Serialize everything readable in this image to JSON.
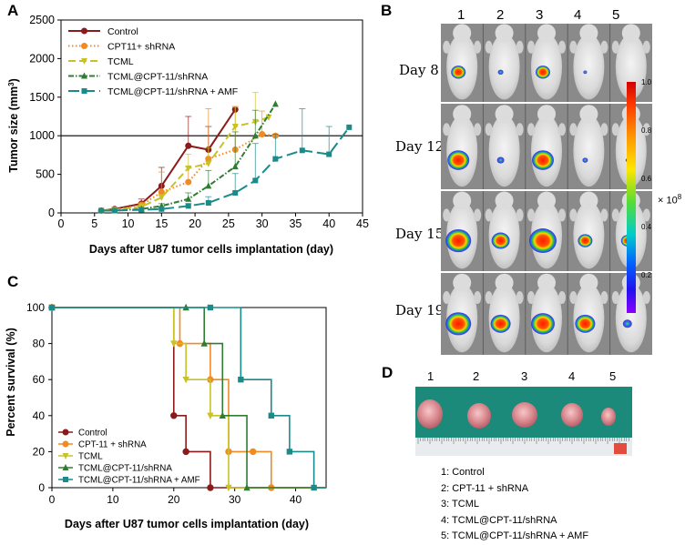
{
  "panels": {
    "A": "A",
    "B": "B",
    "C": "C",
    "D": "D"
  },
  "colors": {
    "control": "#8b1a1a",
    "cpt11": "#f08a24",
    "tcml": "#c8c228",
    "tcml_cpt": "#2e7d32",
    "tcml_cpt_amf": "#1b8a8a"
  },
  "chart_data": [
    {
      "id": "A",
      "type": "line",
      "title": "",
      "xlabel": "Days after U87 tumor cells implantation (day)",
      "ylabel": "Tumor size (mm3)",
      "ylabel_main": "Tumor size (mm",
      "ylabel_sup": "3",
      "ylabel_end": ")",
      "xlim": [
        0,
        45
      ],
      "ylim": [
        0,
        2500
      ],
      "xticks": [
        0,
        5,
        10,
        15,
        20,
        25,
        30,
        35,
        40,
        45
      ],
      "yticks": [
        0,
        500,
        1000,
        1500,
        2000,
        2500
      ],
      "reference_line": 1000,
      "series": [
        {
          "name": "Control",
          "color": "#8b1a1a",
          "dash": "",
          "marker": "circle",
          "x": [
            6,
            8,
            12,
            15,
            19,
            22,
            26
          ],
          "y": [
            30,
            50,
            120,
            350,
            870,
            820,
            1340
          ],
          "err": [
            0,
            20,
            60,
            240,
            380,
            300,
            0
          ]
        },
        {
          "name": "CPT11+ shRNA",
          "color": "#f08a24",
          "dash": "1.5,2.5",
          "marker": "circle",
          "x": [
            6,
            8,
            12,
            15,
            19,
            22,
            26,
            30,
            32
          ],
          "y": [
            30,
            40,
            100,
            270,
            400,
            700,
            820,
            1020,
            1000
          ],
          "err": [
            0,
            20,
            40,
            260,
            200,
            650,
            560,
            300,
            0
          ]
        },
        {
          "name": "TCML",
          "color": "#c8c228",
          "dash": "8,4",
          "marker": "triangle-down",
          "x": [
            6,
            8,
            12,
            15,
            19,
            22,
            26,
            29,
            31
          ],
          "y": [
            30,
            40,
            80,
            200,
            580,
            640,
            1120,
            1180,
            1240
          ],
          "err": [
            0,
            10,
            40,
            40,
            180,
            200,
            250,
            380,
            0
          ]
        },
        {
          "name": "TCML@CPT-11/shRNA",
          "color": "#2e7d32",
          "dash": "6,2,1.5,2",
          "marker": "triangle-up",
          "x": [
            6,
            8,
            12,
            15,
            19,
            22,
            26,
            29,
            32
          ],
          "y": [
            30,
            30,
            50,
            90,
            180,
            350,
            600,
            1000,
            1410
          ],
          "err": [
            0,
            0,
            15,
            30,
            80,
            200,
            450,
            330,
            0
          ]
        },
        {
          "name": "TCML@CPT-11/shRNA + AMF",
          "color": "#1b8a8a",
          "dash": "12,5",
          "marker": "square",
          "x": [
            6,
            8,
            12,
            15,
            19,
            22,
            26,
            29,
            32,
            36,
            40,
            43
          ],
          "y": [
            30,
            30,
            40,
            50,
            90,
            130,
            260,
            420,
            700,
            810,
            760,
            1110
          ],
          "err": [
            0,
            0,
            0,
            10,
            30,
            80,
            250,
            480,
            320,
            540,
            360,
            0
          ]
        }
      ]
    },
    {
      "id": "C",
      "type": "line",
      "title": "",
      "xlabel": "Days after U87 tumor cells implantation (day)",
      "ylabel": "Percent survival (%)",
      "xlim": [
        0,
        45
      ],
      "ylim": [
        0,
        100
      ],
      "xticks": [
        0,
        10,
        20,
        30,
        40
      ],
      "yticks": [
        0,
        20,
        40,
        60,
        80,
        100
      ],
      "series": [
        {
          "name": "Control",
          "color": "#8b1a1a",
          "marker": "circle",
          "x_start": 0,
          "x_end": 45,
          "drops": [
            [
              20,
              40
            ],
            [
              22,
              20
            ],
            [
              26,
              0
            ]
          ]
        },
        {
          "name": "CPT-11 + shRNA",
          "color": "#f08a24",
          "marker": "circle",
          "x_start": 0,
          "x_end": 45,
          "drops": [
            [
              21,
              80
            ],
            [
              26,
              60
            ],
            [
              29,
              20
            ],
            [
              33,
              20
            ],
            [
              36,
              0
            ]
          ]
        },
        {
          "name": "TCML",
          "color": "#c8c228",
          "marker": "triangle-down",
          "x_start": 0,
          "x_end": 45,
          "drops": [
            [
              20,
              80
            ],
            [
              22,
              60
            ],
            [
              26,
              40
            ],
            [
              29,
              0
            ]
          ]
        },
        {
          "name": "TCML@CPT-11/shRNA",
          "color": "#2e7d32",
          "marker": "triangle-up",
          "x_start": 0,
          "x_end": 45,
          "drops": [
            [
              22,
              100
            ],
            [
              25,
              80
            ],
            [
              28,
              40
            ],
            [
              32,
              0
            ]
          ]
        },
        {
          "name": "TCML@CPT-11/shRNA + AMF",
          "color": "#1b8a8a",
          "marker": "square",
          "x_start": 0,
          "x_end": 45,
          "drops": [
            [
              26,
              100
            ],
            [
              31,
              60
            ],
            [
              36,
              40
            ],
            [
              39,
              20
            ],
            [
              43,
              0
            ]
          ]
        }
      ]
    }
  ],
  "imaging": {
    "column_numbers": [
      "1",
      "2",
      "3",
      "4",
      "5"
    ],
    "day_labels": [
      "Day 8",
      "Day 12",
      "Day 15",
      "Day 19"
    ],
    "colorbar_ticks": [
      "1.0",
      "0.8",
      "0.6",
      "0.4",
      "0.2"
    ],
    "colorbar_scale": "× 10",
    "colorbar_exp": "8"
  },
  "tumors": {
    "numbers": [
      "1",
      "2",
      "3",
      "4",
      "5"
    ],
    "legend": [
      "1: Control",
      "2: CPT-11 + shRNA",
      "3: TCML",
      "4: TCML@CPT-11/shRNA",
      "5: TCML@CPT-11/shRNA + AMF"
    ]
  }
}
